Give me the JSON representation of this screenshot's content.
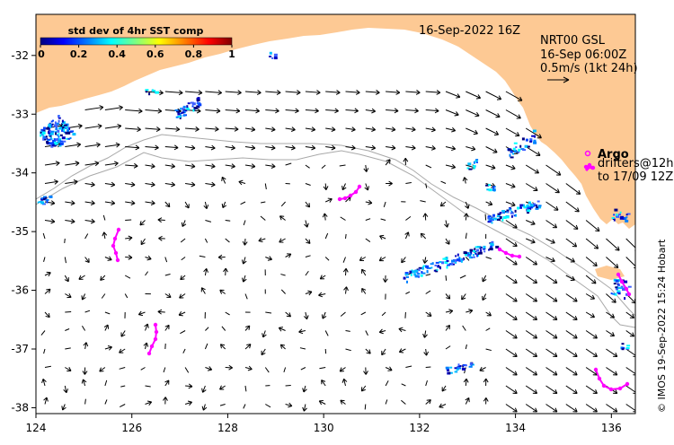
{
  "header": {
    "date_label": "16-Sep-2022 16Z",
    "product": "NRT00 GSL",
    "time": "16-Sep 06:00Z",
    "scale_label": "0.5m/s (1kt 24h)"
  },
  "colorbar": {
    "title": "std dev of 4hr SST comp",
    "ticks": [
      "0",
      "0.2",
      "0.4",
      "0.6",
      "0.8",
      "1"
    ],
    "colors": [
      "#000080",
      "#0000ff",
      "#0080ff",
      "#00ffff",
      "#80ff80",
      "#ffff00",
      "#ff8000",
      "#ff0000",
      "#800000"
    ]
  },
  "legend": {
    "argo_label": "Argo",
    "drifter_line1": "drifters@12h",
    "drifter_line2": "to 17/09 12Z"
  },
  "axes": {
    "x_ticks": [
      "124",
      "126",
      "128",
      "130",
      "132",
      "134",
      "136"
    ],
    "y_ticks": [
      "-32",
      "-33",
      "-34",
      "-35",
      "-36",
      "-37",
      "-38"
    ],
    "lon_range": [
      124,
      136.5
    ],
    "lat_range": [
      -38.1,
      -31.3
    ]
  },
  "credit": "© IMOS 19-Sep-2022 15:24 Hobart",
  "colors": {
    "land": "#fdc994",
    "argo": "#ff00ff",
    "arrow": "#000000",
    "contour": "#a9a9a9"
  }
}
